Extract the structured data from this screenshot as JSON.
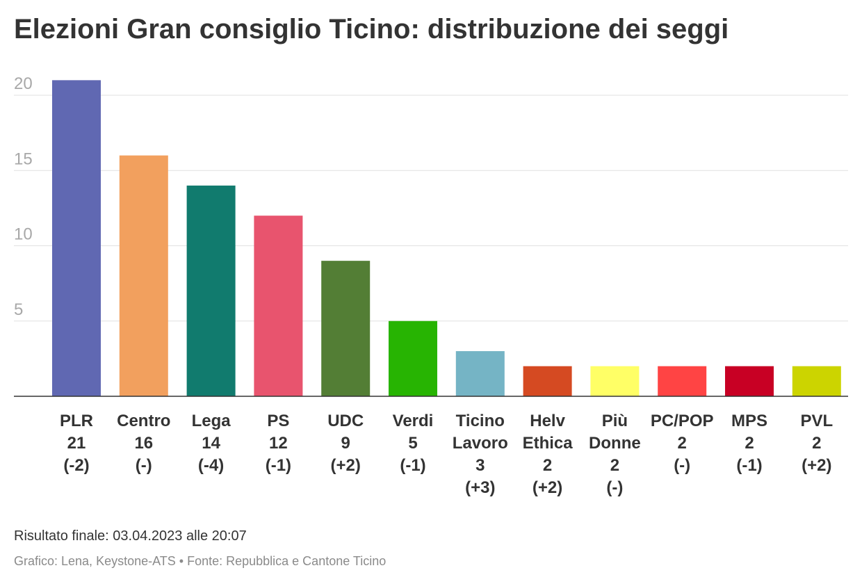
{
  "chart_data": {
    "type": "bar",
    "title": "Elezioni Gran consiglio Ticino: distribuzione dei seggi",
    "xlabel": "",
    "ylabel": "",
    "ylim": [
      0,
      21
    ],
    "yticks": [
      5,
      10,
      15,
      20
    ],
    "grid": true,
    "categories": [
      "PLR",
      "Centro",
      "Lega",
      "PS",
      "UDC",
      "Verdi",
      "Ticino Lavoro",
      "Helv Ethica",
      "Più Donne",
      "PC/POP",
      "MPS",
      "PVL"
    ],
    "values": [
      21,
      16,
      14,
      12,
      9,
      5,
      3,
      2,
      2,
      2,
      2,
      2
    ],
    "changes": [
      "(-2)",
      "(-)",
      "(-4)",
      "(-1)",
      "(+2)",
      "(-1)",
      "(+3)",
      "(+2)",
      "(-)",
      "(-)",
      "(-1)",
      "(+2)"
    ],
    "colors": [
      "#6068b2",
      "#f2a05e",
      "#117b6e",
      "#e8546e",
      "#537e35",
      "#27b402",
      "#75b4c5",
      "#d54a22",
      "#ffff66",
      "#ff4444",
      "#c80024",
      "#ccd400"
    ]
  },
  "footer": {
    "note": "Risultato finale: 03.04.2023 alle 20:07",
    "source": "Grafico: Lena, Keystone-ATS • Fonte: Repubblica e Cantone Ticino"
  }
}
